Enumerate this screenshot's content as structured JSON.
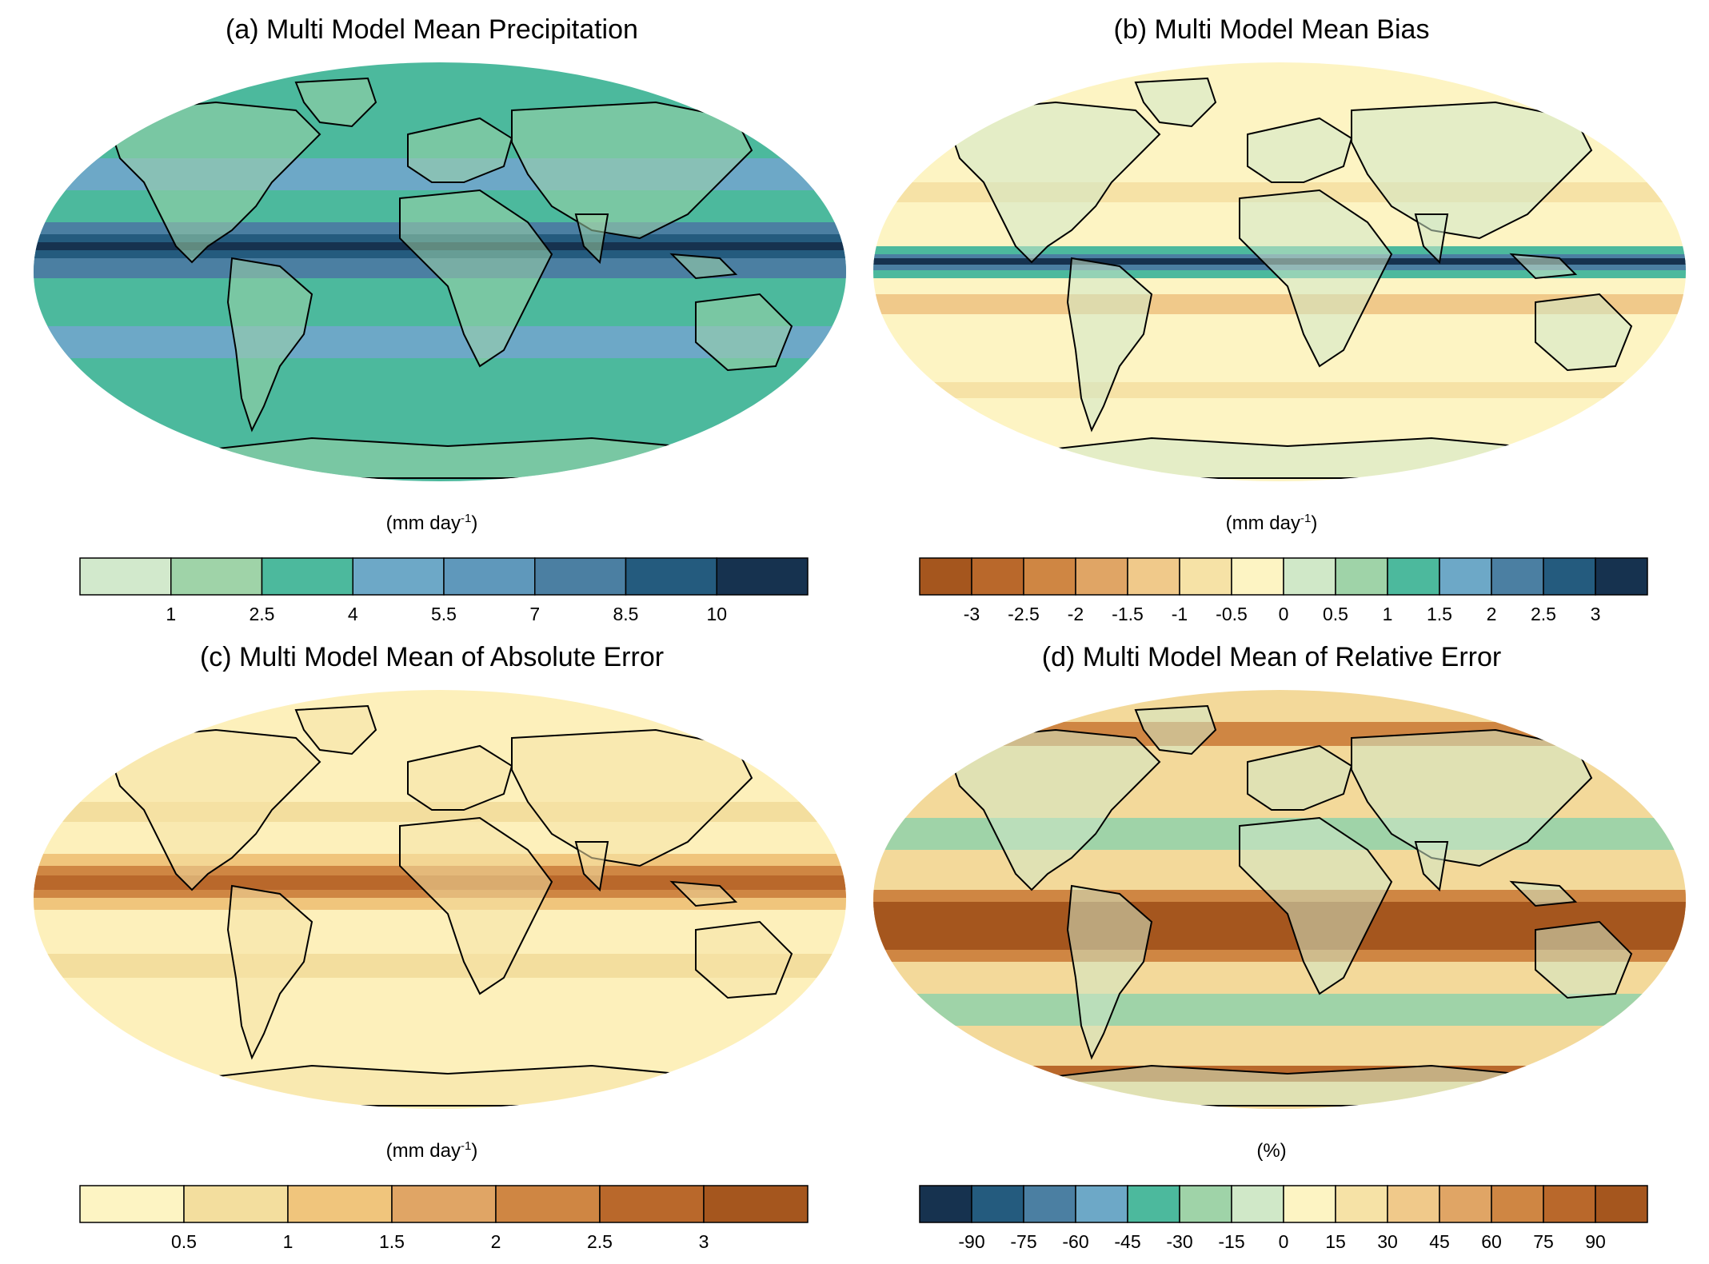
{
  "panels": [
    {
      "id": "a",
      "title": "(a) Multi Model Mean Precipitation",
      "unit_prefix": "(mm day",
      "unit_sup": "-1",
      "unit_suffix": ")",
      "colors": [
        "#d2e9cc",
        "#9fd3a8",
        "#4cb99d",
        "#6da8c7",
        "#5f98bb",
        "#4b7fa2",
        "#245b7e",
        "#16324f"
      ],
      "ticks": [
        "1",
        "2.5",
        "4",
        "5.5",
        "7",
        "8.5",
        "10"
      ],
      "ocean": "#4cb99d",
      "land": "#9fd3a8"
    },
    {
      "id": "b",
      "title": "(b) Multi Model Mean Bias",
      "unit_prefix": "(mm day",
      "unit_sup": "-1",
      "unit_suffix": ")",
      "colors": [
        "#a5561e",
        "#b9682b",
        "#cf8643",
        "#e0a565",
        "#f0c98a",
        "#f6e2a6",
        "#fdf4c3",
        "#d0e8c8",
        "#9fd3a8",
        "#4cb99d",
        "#6da8c7",
        "#4b7fa2",
        "#245b7e",
        "#16324f"
      ],
      "ticks": [
        "-3",
        "-2.5",
        "-2",
        "-1.5",
        "-1",
        "-0.5",
        "0",
        "0.5",
        "1",
        "1.5",
        "2",
        "2.5",
        "3"
      ],
      "ocean": "#fdf4c3",
      "land": "#d0e8c8"
    },
    {
      "id": "c",
      "title": "(c) Multi Model Mean of Absolute Error",
      "unit_prefix": "(mm day",
      "unit_sup": "-1",
      "unit_suffix": ")",
      "colors": [
        "#fdf4c3",
        "#f3de9e",
        "#f0c57c",
        "#e0a565",
        "#cf8643",
        "#b9682b",
        "#a5561e"
      ],
      "ticks": [
        "0.5",
        "1",
        "1.5",
        "2",
        "2.5",
        "3"
      ],
      "ocean": "#fdf0bb",
      "land": "#f6e3a8"
    },
    {
      "id": "d",
      "title": "(d) Multi Model Mean of Relative Error",
      "unit_prefix": "(%",
      "unit_sup": "",
      "unit_suffix": ")",
      "colors": [
        "#16324f",
        "#245b7e",
        "#4b7fa2",
        "#6da8c7",
        "#4cb99d",
        "#9fd3a8",
        "#d0e8c8",
        "#fdf4c3",
        "#f6e2a6",
        "#f0c98a",
        "#e0a565",
        "#cf8643",
        "#b9682b",
        "#a5561e"
      ],
      "ticks": [
        "-90",
        "-75",
        "-60",
        "-45",
        "-30",
        "-15",
        "0",
        "15",
        "30",
        "45",
        "60",
        "75",
        "90"
      ],
      "ocean": "#f3d99a",
      "land": "#d0e8c8"
    }
  ],
  "chart_data": [
    {
      "type": "heatmap",
      "title": "(a) Multi Model Mean Precipitation",
      "unit": "mm day-1",
      "colorbar_levels": [
        1,
        2.5,
        4,
        5.5,
        7,
        8.5,
        10
      ]
    },
    {
      "type": "heatmap",
      "title": "(b) Multi Model Mean Bias",
      "unit": "mm day-1",
      "colorbar_levels": [
        -3,
        -2.5,
        -2,
        -1.5,
        -1,
        -0.5,
        0,
        0.5,
        1,
        1.5,
        2,
        2.5,
        3
      ]
    },
    {
      "type": "heatmap",
      "title": "(c) Multi Model Mean of Absolute Error",
      "unit": "mm day-1",
      "colorbar_levels": [
        0.5,
        1,
        1.5,
        2,
        2.5,
        3
      ]
    },
    {
      "type": "heatmap",
      "title": "(d) Multi Model Mean of Relative Error",
      "unit": "%",
      "colorbar_levels": [
        -90,
        -75,
        -60,
        -45,
        -30,
        -15,
        0,
        15,
        30,
        45,
        60,
        75,
        90
      ]
    }
  ]
}
